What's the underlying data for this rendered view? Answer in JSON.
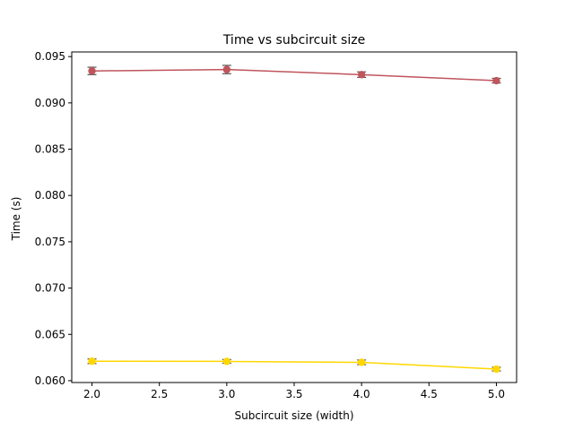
{
  "chart_data": {
    "type": "line",
    "title": "Time vs subcircuit size",
    "xlabel": "Subcircuit size (width)",
    "ylabel": "Time (s)",
    "xlim": [
      1.85,
      5.15
    ],
    "ylim": [
      0.0598,
      0.0955
    ],
    "x_ticks": [
      2.0,
      2.5,
      3.0,
      3.5,
      4.0,
      4.5,
      5.0
    ],
    "x_tick_labels": [
      "2.0",
      "2.5",
      "3.0",
      "3.5",
      "4.0",
      "4.5",
      "5.0"
    ],
    "y_ticks": [
      0.06,
      0.065,
      0.07,
      0.075,
      0.08,
      0.085,
      0.09,
      0.095
    ],
    "y_tick_labels": [
      "0.060",
      "0.065",
      "0.070",
      "0.075",
      "0.080",
      "0.085",
      "0.090",
      "0.095"
    ],
    "grid": false,
    "x": [
      2,
      3,
      4,
      5
    ],
    "series": [
      {
        "color": "#c0555c",
        "marker": "circle",
        "values": [
          0.09345,
          0.0936,
          0.09305,
          0.0924
        ],
        "errors": [
          0.0004,
          0.00045,
          0.0003,
          0.00025
        ]
      },
      {
        "color": "#ffd700",
        "marker": "circle",
        "values": [
          0.0621,
          0.06208,
          0.06198,
          0.06125
        ],
        "errors": [
          0.00025,
          0.0002,
          0.00025,
          0.0002
        ]
      }
    ]
  }
}
